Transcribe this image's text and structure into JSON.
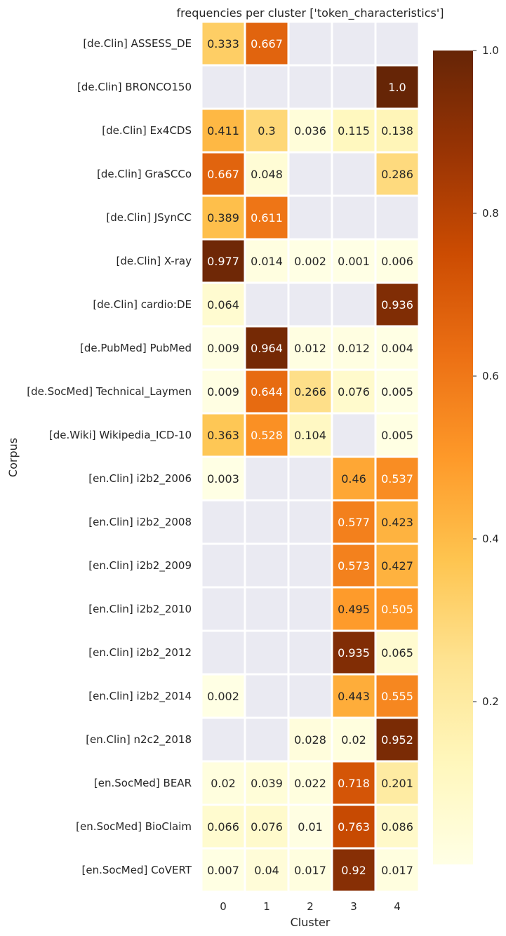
{
  "chart_data": {
    "type": "heatmap",
    "title": "frequencies per cluster ['token_characteristics']",
    "xlabel": "Cluster",
    "ylabel": "Corpus",
    "x_categories": [
      "0",
      "1",
      "2",
      "3",
      "4"
    ],
    "y_categories": [
      "[de.Clin] ASSESS_DE",
      "[de.Clin] BRONCO150",
      "[de.Clin] Ex4CDS",
      "[de.Clin] GraSCCo",
      "[de.Clin] JSynCC",
      "[de.Clin] X-ray",
      "[de.Clin] cardio:DE",
      "[de.PubMed] PubMed",
      "[de.SocMed] Technical_Laymen",
      "[de.Wiki] Wikipedia_ICD-10",
      "[en.Clin] i2b2_2006",
      "[en.Clin] i2b2_2008",
      "[en.Clin] i2b2_2009",
      "[en.Clin] i2b2_2010",
      "[en.Clin] i2b2_2012",
      "[en.Clin] i2b2_2014",
      "[en.Clin] n2c2_2018",
      "[en.SocMed] BEAR",
      "[en.SocMed] BioClaim",
      "[en.SocMed] CoVERT"
    ],
    "values": [
      [
        "0.333",
        "0.667",
        null,
        null,
        null
      ],
      [
        null,
        null,
        null,
        null,
        "1.0"
      ],
      [
        "0.411",
        "0.3",
        "0.036",
        "0.115",
        "0.138"
      ],
      [
        "0.667",
        "0.048",
        null,
        null,
        "0.286"
      ],
      [
        "0.389",
        "0.611",
        null,
        null,
        null
      ],
      [
        "0.977",
        "0.014",
        "0.002",
        "0.001",
        "0.006"
      ],
      [
        "0.064",
        null,
        null,
        null,
        "0.936"
      ],
      [
        "0.009",
        "0.964",
        "0.012",
        "0.012",
        "0.004"
      ],
      [
        "0.009",
        "0.644",
        "0.266",
        "0.076",
        "0.005"
      ],
      [
        "0.363",
        "0.528",
        "0.104",
        null,
        "0.005"
      ],
      [
        "0.003",
        null,
        null,
        "0.46",
        "0.537"
      ],
      [
        null,
        null,
        null,
        "0.577",
        "0.423"
      ],
      [
        null,
        null,
        null,
        "0.573",
        "0.427"
      ],
      [
        null,
        null,
        null,
        "0.495",
        "0.505"
      ],
      [
        null,
        null,
        null,
        "0.935",
        "0.065"
      ],
      [
        "0.002",
        null,
        null,
        "0.443",
        "0.555"
      ],
      [
        null,
        null,
        "0.028",
        "0.02",
        "0.952"
      ],
      [
        "0.02",
        "0.039",
        "0.022",
        "0.718",
        "0.201"
      ],
      [
        "0.066",
        "0.076",
        "0.01",
        "0.763",
        "0.086"
      ],
      [
        "0.007",
        "0.04",
        "0.017",
        "0.92",
        "0.017"
      ]
    ],
    "colorbar": {
      "colormap": "YlOrBr",
      "range": [
        0,
        1.0
      ],
      "ticks": [
        "0.2",
        "0.4",
        "0.6",
        "0.8",
        "1.0"
      ]
    },
    "missing_color": "#eaeaf2",
    "grid": false
  }
}
